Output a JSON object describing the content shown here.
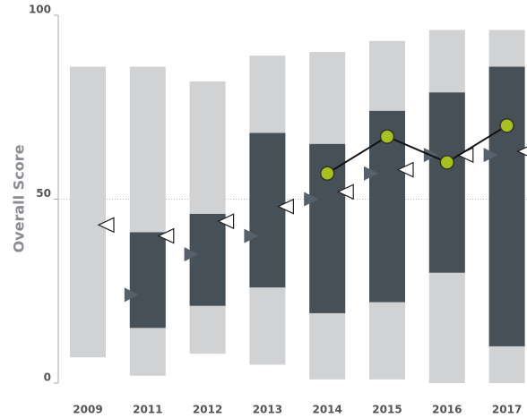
{
  "chart_data": {
    "type": "range-marker",
    "ylabel": "Overall Score",
    "categories": [
      "2009",
      "2011",
      "2012",
      "2013",
      "2014",
      "2015",
      "2016",
      "2017"
    ],
    "ylim": [
      0,
      100
    ],
    "yticks": [
      0,
      50,
      100
    ],
    "grid": true,
    "series": [
      {
        "kind": "range",
        "color": "#d1d2d4",
        "low": [
          7,
          2,
          8,
          5,
          1,
          1,
          0,
          0
        ],
        "high": [
          86,
          86,
          82,
          89,
          90,
          93,
          96,
          96
        ]
      },
      {
        "kind": "range",
        "color": "#474f57",
        "low": [
          null,
          15,
          21,
          26,
          19,
          22,
          30,
          10
        ],
        "high": [
          null,
          41,
          46,
          68,
          65,
          74,
          79,
          86
        ]
      },
      {
        "kind": "marker",
        "marker": "triangle-left",
        "color": "#ffffff",
        "values": [
          43,
          40,
          44,
          48,
          52,
          58,
          62,
          63
        ]
      },
      {
        "kind": "marker",
        "marker": "triangle-right",
        "color": "#56616b",
        "values": [
          null,
          24,
          35,
          40,
          50,
          57,
          62,
          62
        ]
      },
      {
        "kind": "line",
        "color": "#a6c21b",
        "values": [
          null,
          null,
          null,
          null,
          57,
          67,
          60,
          70
        ]
      }
    ]
  }
}
